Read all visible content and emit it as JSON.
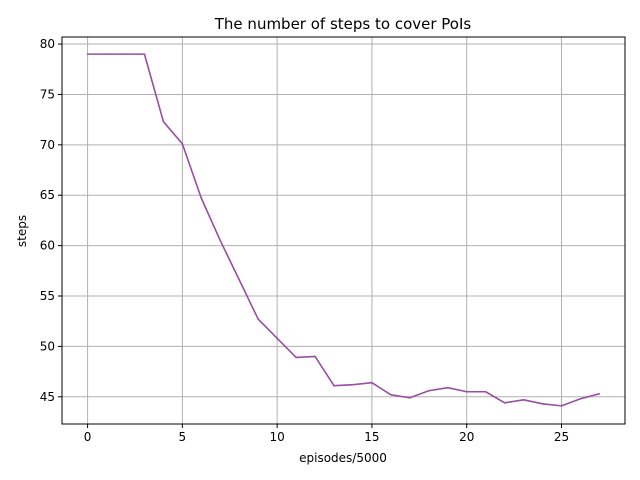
{
  "chart_data": {
    "type": "line",
    "title": "The number of steps to cover PoIs",
    "xlabel": "episodes/5000",
    "ylabel": "steps",
    "xlim": [
      -1.35,
      28.35
    ],
    "ylim": [
      42.3,
      80.7
    ],
    "xticks": [
      0,
      5,
      10,
      15,
      20,
      25
    ],
    "yticks": [
      45,
      50,
      55,
      60,
      65,
      70,
      75,
      80
    ],
    "grid": true,
    "legend": "none",
    "series": [
      {
        "color": "#984ea3",
        "x": [
          0,
          1,
          2,
          3,
          4,
          5,
          6,
          7,
          8,
          9,
          10,
          11,
          12,
          13,
          14,
          15,
          16,
          17,
          18,
          19,
          20,
          21,
          22,
          23,
          24,
          25,
          26,
          27
        ],
        "y": [
          79.0,
          79.0,
          79.0,
          79.0,
          72.3,
          70.1,
          64.7,
          60.5,
          56.6,
          52.7,
          50.8,
          48.9,
          49.0,
          46.1,
          46.2,
          46.4,
          45.2,
          44.9,
          45.6,
          45.9,
          45.5,
          45.5,
          44.4,
          44.7,
          44.3,
          44.1,
          44.8,
          45.3
        ]
      }
    ]
  }
}
